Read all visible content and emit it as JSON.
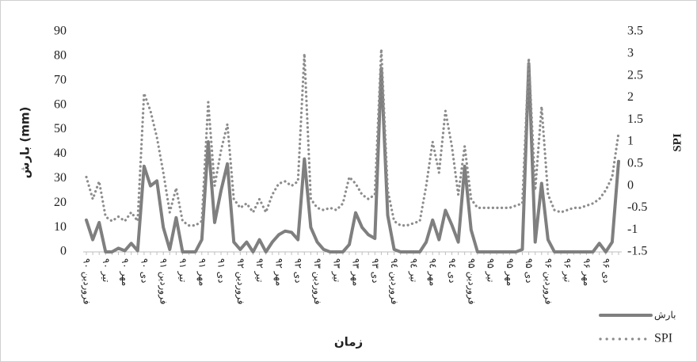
{
  "chart_data": {
    "type": "line",
    "xlabel": "زمان",
    "ylabel": "بارش (mm)",
    "y2label": "SPI",
    "categories": [
      "فروردین ۹۰",
      null,
      null,
      "تیر ۹۰",
      null,
      null,
      "مهر ۹۰",
      null,
      null,
      "دی ۹۰",
      null,
      null,
      "فروردین ۹۱",
      null,
      null,
      "تیر ۹۱",
      null,
      null,
      "مهر ۹۱",
      null,
      null,
      "دی ۹۱",
      null,
      null,
      "فروردین ۹۲",
      null,
      null,
      "تیر ۹۲",
      null,
      null,
      "مهر ۹۲",
      null,
      null,
      "دی ۹۲",
      null,
      null,
      "فروردین ۹۳",
      null,
      null,
      "تیر ۹۳",
      null,
      null,
      "مهر ۹۳",
      null,
      null,
      "دی ۹۳",
      null,
      null,
      "فروردین ۹٤",
      null,
      null,
      "تیر ۹٤",
      null,
      null,
      "مهر ۹٤",
      null,
      null,
      "دی ۹٤",
      null,
      null,
      "فروردین ۹۵",
      null,
      null,
      "تیر ۹۵",
      null,
      null,
      "مهر ۹۵",
      null,
      null,
      "دی ۹۵",
      null,
      null,
      "فروردین ۹۶",
      null,
      null,
      "تیر ۹۶",
      null,
      null,
      "مهر ۹۶",
      null,
      null,
      "دی ۹۶",
      null,
      null
    ],
    "series": [
      {
        "name": "بارش",
        "color": "#7f7f7f",
        "style": "solid",
        "values": [
          13,
          5,
          12,
          0,
          0,
          1.5,
          0.5,
          3.5,
          0.5,
          35,
          27,
          29,
          10,
          1,
          14,
          0,
          0,
          0,
          5,
          45,
          12,
          25,
          36,
          4,
          1,
          4,
          0,
          5,
          0,
          4,
          7,
          8.5,
          8,
          5,
          38,
          10,
          4,
          1,
          0,
          0,
          0,
          3,
          16,
          10,
          7,
          5.5,
          75,
          15,
          1,
          0,
          0,
          0,
          0,
          4,
          13,
          5,
          17,
          11,
          4,
          35,
          9,
          0,
          0,
          0,
          0,
          0,
          0,
          0,
          1,
          77,
          4,
          28,
          5,
          0,
          0,
          0,
          0,
          0,
          0,
          0,
          3.5,
          0,
          4,
          37
        ]
      },
      {
        "name": "SPI",
        "color": "#8c8c8c",
        "style": "dotted",
        "axis": "y2",
        "values": [
          0.2,
          -0.3,
          0.1,
          -0.7,
          -0.8,
          -0.7,
          -0.8,
          -0.6,
          -0.8,
          2.1,
          1.7,
          1.1,
          0.3,
          -0.6,
          -0.05,
          -0.8,
          -0.9,
          -0.9,
          -0.8,
          1.9,
          0,
          0.8,
          1.4,
          -0.3,
          -0.5,
          -0.4,
          -0.6,
          -0.3,
          -0.6,
          -0.2,
          0.05,
          0.1,
          0,
          0.1,
          3,
          -0.3,
          -0.5,
          -0.55,
          -0.5,
          -0.55,
          -0.4,
          0.2,
          0.05,
          -0.2,
          -0.3,
          -0.2,
          3.1,
          -0.1,
          -0.8,
          -0.9,
          -0.9,
          -0.85,
          -0.8,
          0,
          1,
          0.3,
          1.7,
          0.9,
          -0.2,
          0.9,
          -0.3,
          -0.5,
          -0.5,
          -0.5,
          -0.5,
          -0.5,
          -0.5,
          -0.45,
          -0.4,
          2.9,
          -0.1,
          1.8,
          -0.2,
          -0.55,
          -0.6,
          -0.55,
          -0.5,
          -0.5,
          -0.45,
          -0.4,
          -0.3,
          -0.1,
          0.2,
          1.2
        ]
      }
    ],
    "ylim": [
      0,
      90
    ],
    "yticks": [
      0,
      10,
      20,
      30,
      40,
      50,
      60,
      70,
      80,
      90
    ],
    "y2lim": [
      -1.5,
      3.5
    ],
    "y2ticks": [
      -1.5,
      -1,
      -0.5,
      0,
      0.5,
      1,
      1.5,
      2,
      2.5,
      3,
      3.5
    ],
    "grid": false,
    "legend": "lower right"
  }
}
